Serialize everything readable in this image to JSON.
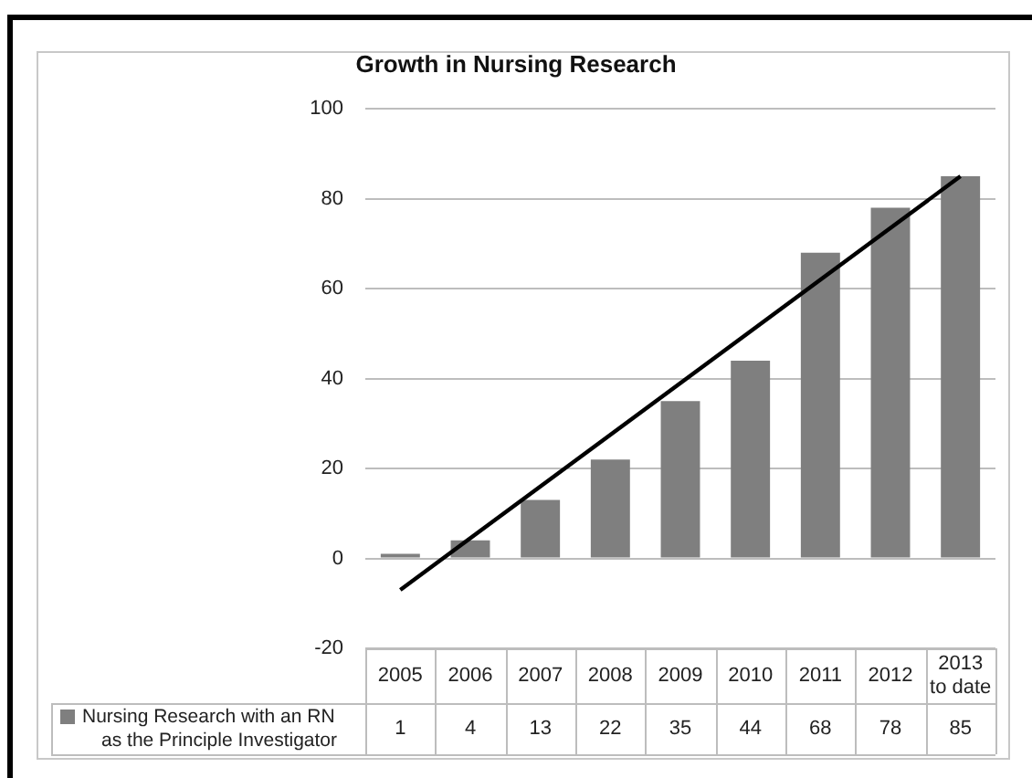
{
  "chart_data": {
    "type": "bar",
    "title": "Growth in Nursing Research",
    "categories": [
      "2005",
      "2006",
      "2007",
      "2008",
      "2009",
      "2010",
      "2011",
      "2012",
      "2013 to date"
    ],
    "series": [
      {
        "name": "Nursing Research with an RN as the Principle Investigator",
        "color": "#7f7f7f",
        "values": [
          1,
          4,
          13,
          22,
          35,
          44,
          68,
          78,
          85
        ],
        "value_labels": [
          "1",
          "4",
          "13",
          "22",
          "35",
          "44",
          "68",
          "78",
          "85"
        ]
      },
      {
        "type": "line",
        "color": "#000000",
        "values": [
          -7,
          null,
          null,
          null,
          null,
          null,
          null,
          null,
          85
        ],
        "marker": "none",
        "line_style": "solid"
      }
    ],
    "ylim": [
      -20,
      100
    ],
    "yticks": [
      -20,
      0,
      20,
      40,
      60,
      80,
      100
    ],
    "grid": "y",
    "legend": "bottom"
  }
}
